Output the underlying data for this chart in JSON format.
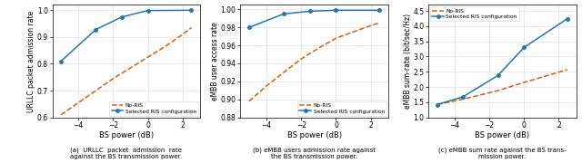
{
  "plot1": {
    "ylabel": "URLLC packet admission rate",
    "blue_x": [
      -5,
      -3,
      -1.5,
      0,
      2.5
    ],
    "blue_y": [
      0.81,
      0.928,
      0.975,
      0.999,
      1.0
    ],
    "red_x": [
      -5,
      -4,
      -3,
      -2,
      -1,
      0,
      1,
      2,
      2.5
    ],
    "red_y": [
      0.61,
      0.655,
      0.7,
      0.745,
      0.785,
      0.825,
      0.865,
      0.91,
      0.935
    ],
    "ylim": [
      0.6,
      1.02
    ],
    "yticks": [
      0.6,
      0.7,
      0.8,
      0.9,
      1.0
    ]
  },
  "plot2": {
    "ylabel": "eMBB user access rate",
    "blue_x": [
      -5,
      -3,
      -1.5,
      0,
      2.5
    ],
    "blue_y": [
      0.98,
      0.995,
      0.998,
      0.999,
      0.999
    ],
    "red_x": [
      -5,
      -4,
      -3,
      -2,
      -1,
      0,
      1,
      2,
      2.5
    ],
    "red_y": [
      0.898,
      0.915,
      0.93,
      0.945,
      0.957,
      0.968,
      0.975,
      0.982,
      0.985
    ],
    "ylim": [
      0.88,
      1.005
    ],
    "yticks": [
      0.88,
      0.9,
      0.92,
      0.94,
      0.96,
      0.98,
      1.0
    ]
  },
  "plot3": {
    "ylabel": "eMBB sum-rate (bit/sec/Hz)",
    "blue_x": [
      -5,
      -3.5,
      -1.5,
      0,
      2.5
    ],
    "blue_y": [
      1.42,
      1.68,
      2.38,
      3.3,
      4.25
    ],
    "red_x": [
      -5,
      -3.5,
      -1.5,
      0,
      2.5
    ],
    "red_y": [
      1.42,
      1.6,
      1.88,
      2.15,
      2.57
    ],
    "ylim": [
      1.0,
      4.7
    ],
    "yticks": [
      1.0,
      1.5,
      2.0,
      2.5,
      3.0,
      3.5,
      4.0,
      4.5
    ]
  },
  "xlabel": "BS power (dB)",
  "xlim": [
    -5.5,
    3.0
  ],
  "xticks": [
    -4,
    -2,
    0,
    2
  ],
  "blue_color": "#1f77b4",
  "red_color": "#d95f02",
  "legend_selected": "Selected RIS configuration",
  "legend_noris": "No-RIS",
  "legend_locs": [
    "lower right",
    "lower right",
    "upper left"
  ],
  "captions": [
    "(a)  URLLC  packet  admission  rate\nagainst the BS transmission power.",
    "(b) eMBB users admission rate against\nthe BS transmission power.",
    "(c) eMBB sum rate against the BS trans-\nmission power."
  ]
}
